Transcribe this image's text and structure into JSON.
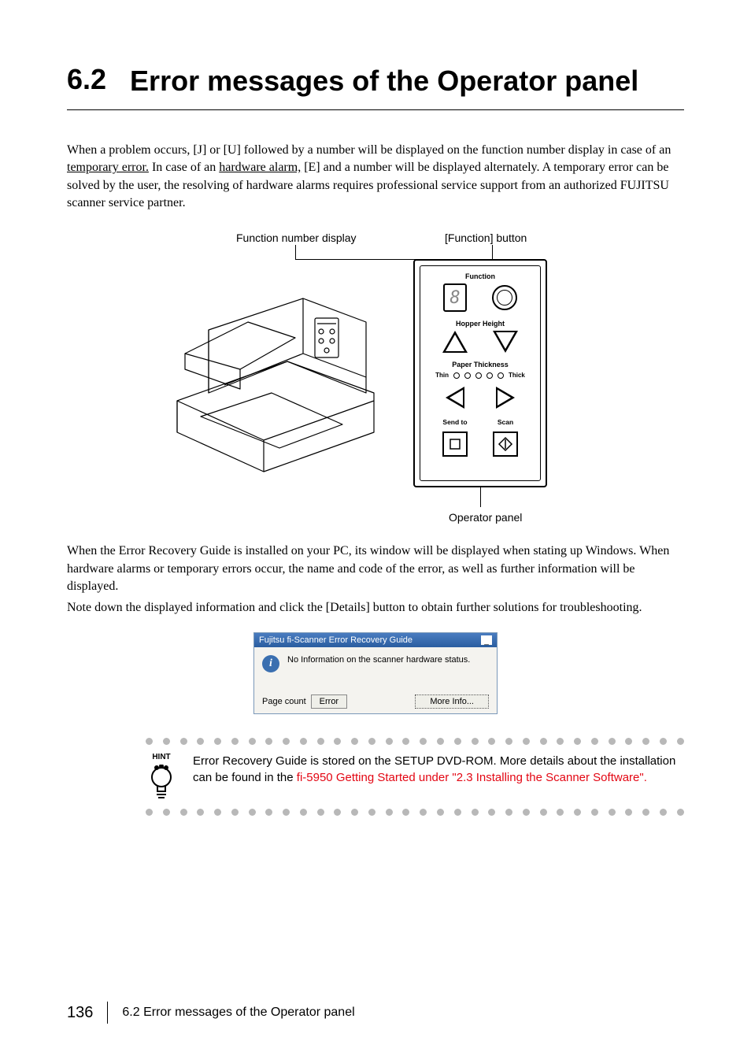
{
  "heading": {
    "number": "6.2",
    "title": "Error messages of the Operator panel"
  },
  "paragraph1": {
    "pre": "When a problem occurs, [J] or [U] followed by a number will be displayed on the function number display in case of an ",
    "u1": "temporary error.",
    "mid": " In case of an ",
    "u2": "hardware alarm,",
    "post": " [E] and a number will be displayed alternately. A temporary error can be solved by the user, the resolving of hardware alarms requires professional service support from an authorized FUJITSU scanner service partner."
  },
  "diagram": {
    "label_function_display": "Function number display",
    "label_function_button": "[Function] button",
    "label_operator_panel": "Operator panel",
    "panel": {
      "function": "Function",
      "display_char": "8",
      "hopper": "Hopper Height",
      "paper": "Paper Thickness",
      "thin": "Thin",
      "thick": "Thick",
      "sendto": "Send to",
      "scan": "Scan"
    }
  },
  "paragraph2": "When the Error Recovery Guide is installed on your PC, its window will be displayed when stating up Windows. When hardware alarms or temporary errors occur, the name and code of the error, as well as further information will be displayed.",
  "paragraph3": "Note down the displayed information and click the [Details]  button to obtain further solutions for troubleshooting.",
  "dialog": {
    "title": "Fujitsu fi-Scanner Error Recovery Guide",
    "message": "No Information on the scanner hardware status.",
    "page_count_label": "Page count",
    "error_btn": "Error",
    "more_info_btn": "More Info..."
  },
  "hint": {
    "label": "HINT",
    "text_pre": "Error Recovery Guide is stored on the SETUP DVD-ROM. More details about the installation can be found in the ",
    "link": "fi-5950 Getting Started under \"2.3 Installing the Scanner Software\".",
    "dot_color": "#b8b8b8",
    "dot_count": 32
  },
  "footer": {
    "page": "136",
    "title": "6.2 Error messages of the Operator panel"
  },
  "colors": {
    "link_red": "#e30613",
    "dialog_title_bg": "#3a6fb0"
  }
}
